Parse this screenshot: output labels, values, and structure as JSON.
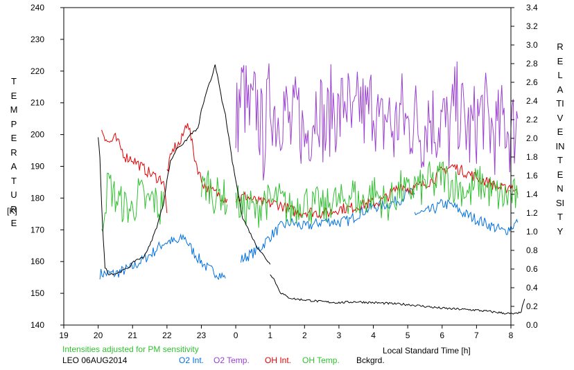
{
  "chart_data": {
    "type": "line",
    "station": "LEO 06AUG2014",
    "note": "Intensities adjusted for PM sensitivity",
    "xlabel": "Local Standard Time [h]",
    "x_ticks": [
      "19",
      "20",
      "21",
      "22",
      "23",
      "0",
      "1",
      "2",
      "3",
      "4",
      "5",
      "6",
      "7",
      "8"
    ],
    "x_range_hours_since_19": [
      0,
      13
    ],
    "left_axis": {
      "label": "TEMPERATURE",
      "unit": "[K]",
      "ylim": [
        140,
        240
      ],
      "ticks": [
        140,
        150,
        160,
        170,
        180,
        190,
        200,
        210,
        220,
        230,
        240
      ]
    },
    "right_axis": {
      "label": "RELATIVE INTENSITY",
      "ylim": [
        0.0,
        3.4
      ],
      "ticks": [
        "0.0",
        "0.2",
        "0.4",
        "0.6",
        "0.8",
        "1.0",
        "1.2",
        "1.4",
        "1.6",
        "1.8",
        "2.0",
        "2.2",
        "2.4",
        "2.6",
        "2.8",
        "3.0",
        "3.2",
        "3.4"
      ]
    },
    "series": [
      {
        "name": "O2 Int.",
        "color": "#0070e0",
        "axis": "right",
        "segments": [
          [
            [
              20.05,
              0.55
            ],
            [
              20.5,
              0.55
            ],
            [
              21.0,
              0.62
            ],
            [
              21.3,
              0.7
            ],
            [
              21.6,
              0.78
            ],
            [
              21.9,
              0.88
            ],
            [
              22.1,
              0.9
            ],
            [
              22.3,
              0.88
            ],
            [
              22.5,
              0.95
            ],
            [
              22.7,
              0.82
            ],
            [
              22.9,
              0.72
            ],
            [
              23.2,
              0.6
            ],
            [
              23.5,
              0.55
            ],
            [
              23.7,
              0.5
            ]
          ],
          [
            [
              24.15,
              0.7
            ],
            [
              24.4,
              0.75
            ],
            [
              24.7,
              0.82
            ],
            [
              25.0,
              0.95
            ],
            [
              25.3,
              1.05
            ],
            [
              25.6,
              1.1
            ],
            [
              26.0,
              1.05
            ],
            [
              26.3,
              1.08
            ],
            [
              26.6,
              1.12
            ],
            [
              27.0,
              1.1
            ],
            [
              27.3,
              1.12
            ],
            [
              27.6,
              1.2
            ],
            [
              27.9,
              1.25
            ],
            [
              28.2,
              1.28
            ],
            [
              28.5,
              1.3
            ],
            [
              28.8,
              1.35
            ],
            [
              29.0,
              1.42
            ],
            [
              29.2,
              1.4
            ]
          ],
          [
            [
              29.2,
              1.2
            ],
            [
              29.5,
              1.2
            ],
            [
              29.8,
              1.25
            ],
            [
              30.0,
              1.3
            ],
            [
              30.3,
              1.28
            ],
            [
              30.6,
              1.2
            ],
            [
              30.9,
              1.15
            ],
            [
              31.2,
              1.1
            ],
            [
              31.5,
              1.05
            ],
            [
              31.8,
              1.0
            ],
            [
              32.0,
              1.05
            ],
            [
              32.2,
              1.1
            ]
          ]
        ]
      },
      {
        "name": "O2 Temp.",
        "color": "#9a40d0",
        "axis": "left",
        "segments": [
          [
            [
              24.0,
              203
            ],
            [
              24.2,
              215
            ],
            [
              24.4,
              205
            ],
            [
              24.6,
              210
            ],
            [
              24.8,
              198
            ],
            [
              25.0,
              212
            ],
            [
              25.2,
              205
            ],
            [
              25.4,
              210
            ],
            [
              25.6,
              200
            ],
            [
              25.8,
              208
            ],
            [
              26.0,
              198
            ],
            [
              26.2,
              205
            ],
            [
              26.4,
              212
            ],
            [
              26.6,
              200
            ],
            [
              26.8,
              210
            ],
            [
              27.0,
              205
            ],
            [
              27.2,
              213
            ],
            [
              27.4,
              200
            ],
            [
              27.6,
              210
            ],
            [
              27.8,
              205
            ],
            [
              28.0,
              212
            ],
            [
              28.2,
              200
            ],
            [
              28.4,
              207
            ],
            [
              28.6,
              200
            ],
            [
              28.8,
              208
            ],
            [
              29.0,
              202
            ],
            [
              29.2,
              206
            ],
            [
              29.4,
              200
            ],
            [
              29.6,
              207
            ],
            [
              29.8,
              203
            ],
            [
              30.0,
              205
            ],
            [
              30.2,
              200
            ],
            [
              30.4,
              210
            ],
            [
              30.6,
              205
            ],
            [
              30.8,
              200
            ],
            [
              31.0,
              204
            ],
            [
              31.2,
              208
            ],
            [
              31.4,
              202
            ],
            [
              31.6,
              200
            ],
            [
              31.8,
              205
            ],
            [
              32.0,
              200
            ],
            [
              32.2,
              205
            ]
          ]
        ]
      },
      {
        "name": "OH Int.",
        "color": "#e00000",
        "axis": "right",
        "segments": [
          [
            [
              20.1,
              2.1
            ],
            [
              20.3,
              1.95
            ],
            [
              20.5,
              2.0
            ],
            [
              20.8,
              1.8
            ],
            [
              21.0,
              1.78
            ],
            [
              21.3,
              1.68
            ],
            [
              21.6,
              1.6
            ],
            [
              21.9,
              1.55
            ],
            [
              22.0,
              1.2
            ]
          ],
          [
            [
              22.0,
              1.65
            ],
            [
              22.2,
              1.9
            ],
            [
              22.4,
              1.95
            ],
            [
              22.6,
              2.2
            ],
            [
              22.8,
              1.8
            ],
            [
              23.0,
              1.55
            ],
            [
              23.2,
              1.45
            ],
            [
              23.5,
              1.4
            ],
            [
              23.75,
              1.35
            ]
          ],
          [
            [
              24.0,
              1.35
            ],
            [
              24.3,
              1.38
            ],
            [
              24.6,
              1.32
            ],
            [
              24.9,
              1.3
            ],
            [
              25.2,
              1.3
            ],
            [
              25.5,
              1.25
            ],
            [
              25.8,
              1.2
            ],
            [
              26.1,
              1.22
            ],
            [
              26.4,
              1.2
            ],
            [
              26.7,
              1.2
            ],
            [
              27.0,
              1.25
            ],
            [
              27.3,
              1.25
            ],
            [
              27.6,
              1.28
            ],
            [
              27.9,
              1.3
            ],
            [
              28.2,
              1.32
            ],
            [
              28.5,
              1.4
            ],
            [
              28.8,
              1.5
            ],
            [
              29.1,
              1.45
            ],
            [
              29.4,
              1.5
            ],
            [
              29.7,
              1.55
            ],
            [
              30.0,
              1.65
            ],
            [
              30.3,
              1.7
            ],
            [
              30.6,
              1.65
            ],
            [
              30.9,
              1.6
            ],
            [
              31.2,
              1.55
            ],
            [
              31.5,
              1.5
            ],
            [
              31.8,
              1.45
            ],
            [
              32.0,
              1.5
            ],
            [
              32.2,
              1.4
            ]
          ]
        ]
      },
      {
        "name": "OH Temp.",
        "color": "#30c030",
        "axis": "left",
        "segments": [
          [
            [
              20.1,
              172
            ],
            [
              20.3,
              185
            ],
            [
              20.5,
              180
            ],
            [
              20.7,
              178
            ],
            [
              21.0,
              176
            ],
            [
              21.2,
              182
            ],
            [
              21.4,
              178
            ],
            [
              21.6,
              180
            ],
            [
              21.8,
              176
            ],
            [
              21.9,
              182
            ]
          ],
          [
            [
              23.0,
              182
            ],
            [
              23.2,
              185
            ],
            [
              23.4,
              180
            ],
            [
              23.6,
              182
            ],
            [
              23.75,
              178
            ]
          ],
          [
            [
              24.0,
              180
            ],
            [
              24.2,
              176
            ],
            [
              24.4,
              178
            ],
            [
              24.6,
              175
            ],
            [
              24.8,
              180
            ],
            [
              25.0,
              178
            ],
            [
              25.2,
              180
            ],
            [
              25.4,
              178
            ],
            [
              25.6,
              176
            ],
            [
              25.8,
              178
            ],
            [
              26.0,
              180
            ],
            [
              26.2,
              177
            ],
            [
              26.4,
              178
            ],
            [
              26.6,
              176
            ],
            [
              26.8,
              180
            ],
            [
              27.0,
              178
            ],
            [
              27.2,
              180
            ],
            [
              27.4,
              182
            ],
            [
              27.6,
              178
            ],
            [
              27.8,
              180
            ],
            [
              28.0,
              182
            ],
            [
              28.2,
              180
            ],
            [
              28.4,
              178
            ],
            [
              28.6,
              180
            ],
            [
              28.8,
              183
            ],
            [
              29.0,
              181
            ],
            [
              29.2,
              184
            ],
            [
              29.4,
              183
            ],
            [
              29.6,
              186
            ],
            [
              29.8,
              184
            ],
            [
              30.0,
              188
            ],
            [
              30.2,
              185
            ],
            [
              30.4,
              184
            ],
            [
              30.6,
              183
            ],
            [
              30.8,
              181
            ],
            [
              31.0,
              185
            ],
            [
              31.2,
              184
            ],
            [
              31.4,
              182
            ],
            [
              31.6,
              181
            ],
            [
              31.8,
              180
            ],
            [
              32.0,
              181
            ],
            [
              32.2,
              180
            ]
          ]
        ]
      },
      {
        "name": "Bckgrd.",
        "color": "#000000",
        "axis": "right",
        "segments": [
          [
            [
              20.0,
              2.0
            ],
            [
              20.05,
              1.8
            ],
            [
              20.1,
              1.3
            ],
            [
              20.15,
              0.9
            ],
            [
              20.2,
              0.62
            ],
            [
              20.3,
              0.55
            ],
            [
              20.5,
              0.55
            ],
            [
              20.7,
              0.58
            ],
            [
              20.9,
              0.62
            ],
            [
              21.1,
              0.7
            ],
            [
              21.3,
              0.72
            ],
            [
              21.5,
              0.85
            ],
            [
              21.7,
              1.05
            ],
            [
              21.9,
              1.3
            ],
            [
              22.0,
              1.55
            ],
            [
              22.1,
              1.75
            ],
            [
              22.3,
              1.9
            ],
            [
              22.5,
              1.95
            ],
            [
              22.7,
              2.05
            ],
            [
              22.9,
              2.1
            ],
            [
              23.0,
              2.3
            ],
            [
              23.2,
              2.55
            ],
            [
              23.3,
              2.65
            ],
            [
              23.4,
              2.8
            ],
            [
              23.5,
              2.6
            ],
            [
              23.6,
              2.4
            ],
            [
              23.7,
              2.25
            ],
            [
              23.8,
              2.0
            ],
            [
              23.9,
              1.75
            ],
            [
              24.0,
              1.55
            ],
            [
              24.1,
              1.35
            ],
            [
              24.2,
              1.15
            ],
            [
              24.4,
              1.0
            ],
            [
              24.6,
              0.85
            ],
            [
              24.8,
              0.75
            ],
            [
              24.9,
              0.7
            ],
            [
              25.0,
              0.65
            ]
          ],
          [
            [
              25.0,
              0.55
            ],
            [
              25.1,
              0.5
            ],
            [
              25.2,
              0.42
            ],
            [
              25.3,
              0.35
            ],
            [
              25.5,
              0.3
            ],
            [
              25.7,
              0.28
            ],
            [
              26.0,
              0.27
            ],
            [
              26.5,
              0.25
            ],
            [
              27.0,
              0.24
            ],
            [
              27.5,
              0.25
            ],
            [
              28.0,
              0.24
            ],
            [
              28.5,
              0.23
            ],
            [
              29.0,
              0.22
            ],
            [
              29.5,
              0.2
            ],
            [
              30.0,
              0.18
            ],
            [
              30.5,
              0.17
            ],
            [
              31.0,
              0.16
            ],
            [
              31.5,
              0.14
            ],
            [
              32.0,
              0.12
            ],
            [
              32.2,
              0.12
            ],
            [
              32.3,
              0.15
            ],
            [
              32.4,
              0.28
            ]
          ]
        ]
      }
    ]
  }
}
